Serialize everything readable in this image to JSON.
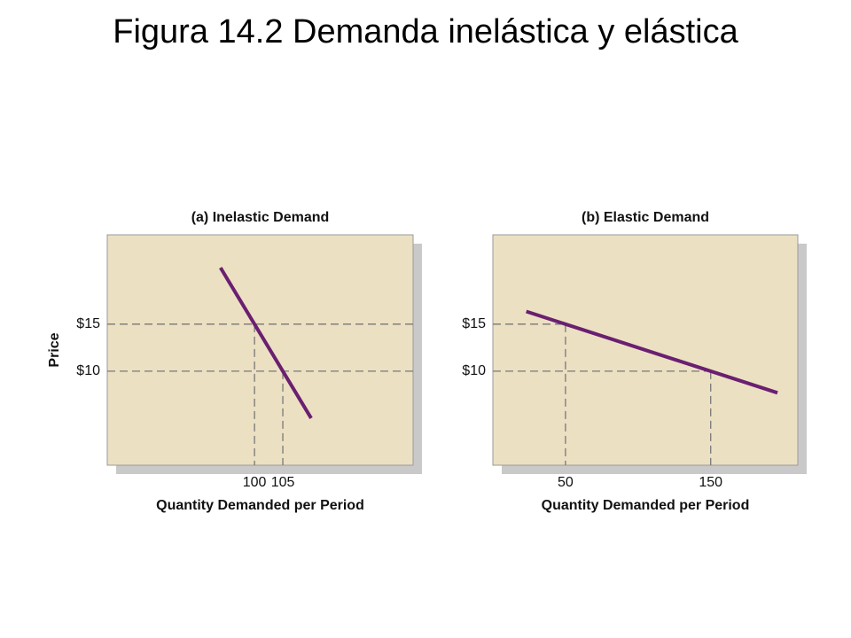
{
  "title": "Figura 14.2 Demanda inelástica y elástica",
  "chart_data": [
    {
      "type": "line",
      "title": "(a) Inelastic Demand",
      "ylabel": "Price",
      "xlabel": "Quantity Demanded per Period",
      "x": [
        94,
        110
      ],
      "series": [
        {
          "color": "#6a1f70",
          "values": [
            21,
            5
          ]
        }
      ],
      "xlim": [
        74,
        128
      ],
      "ylim": [
        0,
        24.5
      ],
      "xticks": [
        100,
        105
      ],
      "yticks": [
        {
          "value": 10,
          "label": "$10"
        },
        {
          "value": 15,
          "label": "$15"
        }
      ],
      "grid": true,
      "background": "#ece0c3"
    },
    {
      "type": "line",
      "title": "(b) Elastic Demand",
      "xlabel": "Quantity Demanded per Period",
      "x": [
        23,
        196
      ],
      "series": [
        {
          "color": "#6a1f70",
          "values": [
            16.35,
            7.7
          ]
        }
      ],
      "xlim": [
        0,
        210
      ],
      "ylim": [
        0,
        24.5
      ],
      "xticks": [
        50,
        150
      ],
      "yticks": [
        {
          "value": 10,
          "label": "$10"
        },
        {
          "value": 15,
          "label": "$15"
        }
      ],
      "grid": false,
      "background": "#ece0c3"
    }
  ]
}
